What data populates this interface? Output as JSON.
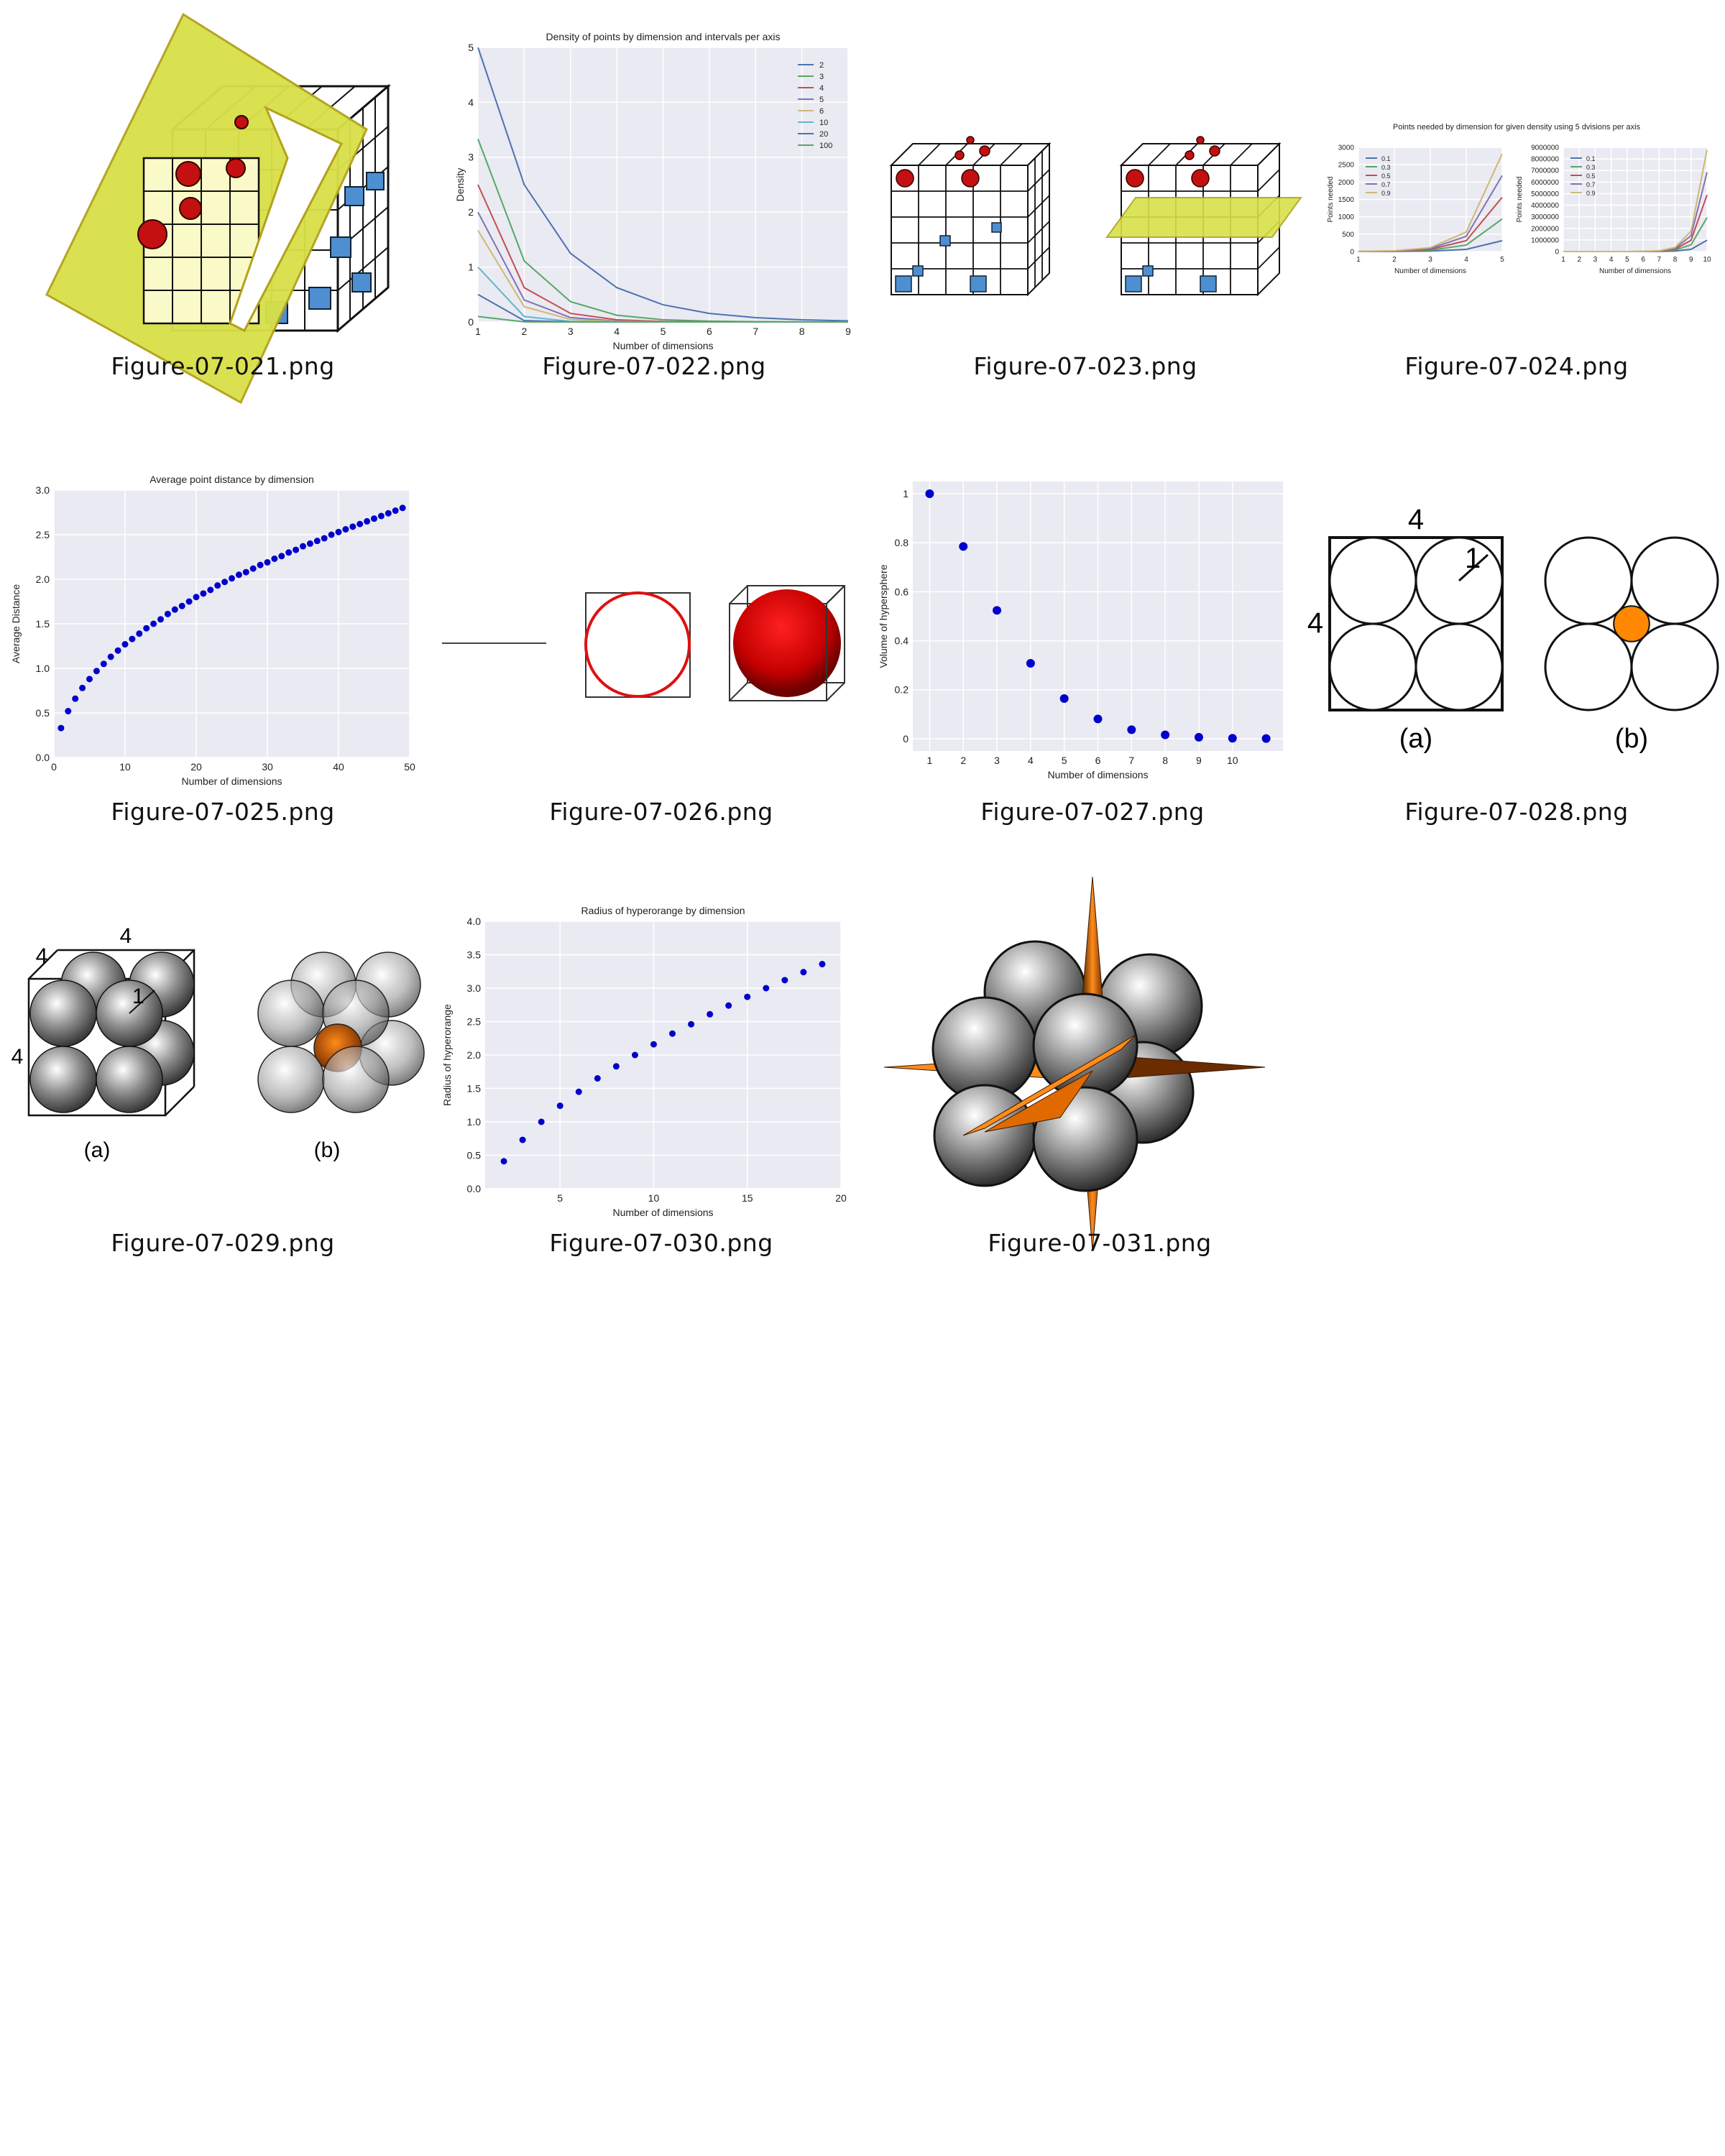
{
  "gallery": {
    "thumbnails": [
      {
        "filename": "Figure-07-021.png"
      },
      {
        "filename": "Figure-07-022.png"
      },
      {
        "filename": "Figure-07-023.png"
      },
      {
        "filename": "Figure-07-024.png"
      },
      {
        "filename": "Figure-07-025.png"
      },
      {
        "filename": "Figure-07-026.png"
      },
      {
        "filename": "Figure-07-027.png"
      },
      {
        "filename": "Figure-07-028.png"
      },
      {
        "filename": "Figure-07-029.png"
      },
      {
        "filename": "Figure-07-030.png"
      },
      {
        "filename": "Figure-07-031.png"
      }
    ],
    "fig028": {
      "dim_top": "4",
      "dim_left": "4",
      "radius": "1",
      "label_a": "(a)",
      "label_b": "(b)"
    },
    "fig029": {
      "dim_top": "4",
      "dim_left": "4",
      "dim_depth": "4",
      "radius": "1",
      "label_a": "(a)",
      "label_b": "(b)"
    }
  },
  "colors": {
    "plot_bg": "#eaeaf2",
    "sphere_red": "#cc1111",
    "cube_blue": "#4d8fd0",
    "plane_yellow": "#d8e04a",
    "orange": "#ff8800",
    "point_blue": "#0000cc",
    "sphere_gray": "#888888"
  },
  "chart_data": [
    {
      "type": "line",
      "title": "Density of points by dimension and intervals per axis",
      "xlabel": "Number of dimensions",
      "ylabel": "Density",
      "xlim": [
        1,
        9
      ],
      "ylim": [
        0,
        5
      ],
      "x": [
        1,
        2,
        3,
        4,
        5,
        6,
        7,
        8,
        9
      ],
      "legend_placement": "top-right",
      "series": [
        {
          "name": "2",
          "color": "#4c72b0",
          "values": [
            5,
            2.5,
            1.25,
            0.625,
            0.313,
            0.156,
            0.078,
            0.039,
            0.02
          ]
        },
        {
          "name": "3",
          "color": "#55a868",
          "values": [
            3.333,
            1.111,
            0.37,
            0.123,
            0.041,
            0.014,
            0.005,
            0.002,
            0.001
          ]
        },
        {
          "name": "4",
          "color": "#c44e52",
          "values": [
            2.5,
            0.625,
            0.156,
            0.039,
            0.01,
            0.002,
            0.001,
            0,
            0
          ]
        },
        {
          "name": "5",
          "color": "#8172b2",
          "values": [
            2,
            0.4,
            0.08,
            0.016,
            0.003,
            0.001,
            0,
            0,
            0
          ]
        },
        {
          "name": "6",
          "color": "#ccb974",
          "values": [
            1.667,
            0.278,
            0.046,
            0.008,
            0.001,
            0,
            0,
            0,
            0
          ]
        },
        {
          "name": "10",
          "color": "#64b5cd",
          "values": [
            1,
            0.1,
            0.01,
            0.001,
            0,
            0,
            0,
            0,
            0
          ]
        },
        {
          "name": "20",
          "color": "#4c72b0",
          "values": [
            0.5,
            0.025,
            0.001,
            0,
            0,
            0,
            0,
            0,
            0
          ]
        },
        {
          "name": "100",
          "color": "#55a868",
          "values": [
            0.1,
            0.001,
            0,
            0,
            0,
            0,
            0,
            0,
            0
          ]
        }
      ],
      "xticks": [
        "1",
        "2",
        "3",
        "4",
        "5",
        "6",
        "7",
        "8",
        "9"
      ],
      "yticks": [
        "0",
        "1",
        "2",
        "3",
        "4",
        "5"
      ]
    },
    {
      "type": "line",
      "title": "Points needed by dimension for given density using 5 dvisions per axis",
      "panels": [
        {
          "xlabel": "Number of dimensions",
          "ylabel": "Points needed",
          "xlim": [
            1,
            5
          ],
          "ylim": [
            0,
            3000
          ],
          "x": [
            1,
            2,
            3,
            4,
            5
          ],
          "xticks": [
            "1",
            "2",
            "3",
            "4",
            "5"
          ],
          "yticks": [
            "0",
            "500",
            "1000",
            "1500",
            "2000",
            "2500",
            "3000"
          ],
          "series": [
            {
              "name": "0.1",
              "color": "#4c72b0",
              "values": [
                0.5,
                2.5,
                12.5,
                62.5,
                312.5
              ]
            },
            {
              "name": "0.3",
              "color": "#55a868",
              "values": [
                1.5,
                7.5,
                37.5,
                187.5,
                937.5
              ]
            },
            {
              "name": "0.5",
              "color": "#c44e52",
              "values": [
                2.5,
                12.5,
                62.5,
                312.5,
                1562.5
              ]
            },
            {
              "name": "0.7",
              "color": "#8172b2",
              "values": [
                3.5,
                17.5,
                87.5,
                437.5,
                2187.5
              ]
            },
            {
              "name": "0.9",
              "color": "#ccb974",
              "values": [
                4.5,
                22.5,
                112.5,
                562.5,
                2812.5
              ]
            }
          ]
        },
        {
          "xlabel": "Number of dimensions",
          "ylabel": "Points needed",
          "xlim": [
            1,
            10
          ],
          "ylim": [
            0,
            9000000
          ],
          "x": [
            1,
            2,
            3,
            4,
            5,
            6,
            7,
            8,
            9,
            10
          ],
          "xticks": [
            "1",
            "2",
            "3",
            "4",
            "5",
            "6",
            "7",
            "8",
            "9",
            "10"
          ],
          "yticks": [
            "0",
            "1000000",
            "2000000",
            "3000000",
            "4000000",
            "5000000",
            "6000000",
            "7000000",
            "8000000",
            "9000000"
          ],
          "series": [
            {
              "name": "0.1",
              "color": "#4c72b0",
              "values": [
                0.5,
                2.5,
                12.5,
                62.5,
                312.5,
                1562.5,
                7812.5,
                39062.5,
                195312.5,
                976562.5
              ]
            },
            {
              "name": "0.3",
              "color": "#55a868",
              "values": [
                1.5,
                7.5,
                37.5,
                187.5,
                937.5,
                4687.5,
                23437.5,
                117187.5,
                585937.5,
                2929687.5
              ]
            },
            {
              "name": "0.5",
              "color": "#c44e52",
              "values": [
                2.5,
                12.5,
                62.5,
                312.5,
                1562.5,
                7812.5,
                39062.5,
                195312.5,
                976562.5,
                4882812.5
              ]
            },
            {
              "name": "0.7",
              "color": "#8172b2",
              "values": [
                3.5,
                17.5,
                87.5,
                437.5,
                2187.5,
                10937.5,
                54687.5,
                273437.5,
                1367187.5,
                6835937.5
              ]
            },
            {
              "name": "0.9",
              "color": "#ccb974",
              "values": [
                4.5,
                22.5,
                112.5,
                562.5,
                2812.5,
                14062.5,
                70312.5,
                351562.5,
                1757812.5,
                8789062.5
              ]
            }
          ]
        }
      ]
    },
    {
      "type": "scatter",
      "title": "Average point distance by dimension",
      "xlabel": "Number of dimensions",
      "ylabel": "Average Distance",
      "xlim": [
        0,
        50
      ],
      "ylim": [
        0,
        3
      ],
      "xticks": [
        "0",
        "10",
        "20",
        "30",
        "40",
        "50"
      ],
      "yticks": [
        "0.0",
        "0.5",
        "1.0",
        "1.5",
        "2.0",
        "2.5",
        "3.0"
      ],
      "x": [
        1,
        2,
        3,
        4,
        5,
        6,
        7,
        8,
        9,
        10,
        11,
        12,
        13,
        14,
        15,
        16,
        17,
        18,
        19,
        20,
        21,
        22,
        23,
        24,
        25,
        26,
        27,
        28,
        29,
        30,
        31,
        32,
        33,
        34,
        35,
        36,
        37,
        38,
        39,
        40,
        41,
        42,
        43,
        44,
        45,
        46,
        47,
        48,
        49
      ],
      "y": [
        0.33,
        0.52,
        0.66,
        0.78,
        0.88,
        0.97,
        1.05,
        1.13,
        1.2,
        1.27,
        1.33,
        1.39,
        1.45,
        1.5,
        1.55,
        1.61,
        1.66,
        1.7,
        1.75,
        1.8,
        1.84,
        1.88,
        1.93,
        1.97,
        2.01,
        2.05,
        2.08,
        2.12,
        2.16,
        2.19,
        2.23,
        2.26,
        2.3,
        2.33,
        2.37,
        2.4,
        2.43,
        2.46,
        2.5,
        2.53,
        2.56,
        2.59,
        2.62,
        2.65,
        2.68,
        2.71,
        2.74,
        2.77,
        2.8
      ]
    },
    {
      "type": "scatter",
      "xlabel": "Number of dimensions",
      "ylabel": "Volume of hypersphere",
      "xlim": [
        0.5,
        11.5
      ],
      "ylim": [
        -0.05,
        1.05
      ],
      "xticks": [
        "1",
        "2",
        "3",
        "4",
        "5",
        "6",
        "7",
        "8",
        "9",
        "10"
      ],
      "yticks": [
        "0",
        "0.2",
        "0.4",
        "0.6",
        "0.8",
        "1"
      ],
      "x": [
        1,
        2,
        3,
        4,
        5,
        6,
        7,
        8,
        9,
        10,
        11
      ],
      "y": [
        1,
        0.785,
        0.524,
        0.308,
        0.164,
        0.081,
        0.037,
        0.016,
        0.006,
        0.002,
        0.001
      ]
    },
    {
      "type": "scatter",
      "title": "Radius of hyperorange by dimension",
      "xlabel": "Number of dimensions",
      "ylabel": "Radius of hyperorange",
      "xlim": [
        1,
        20
      ],
      "ylim": [
        0,
        4
      ],
      "xticks": [
        "5",
        "10",
        "15",
        "20"
      ],
      "yticks": [
        "0.0",
        "0.5",
        "1.0",
        "1.5",
        "2.0",
        "2.5",
        "3.0",
        "3.5",
        "4.0"
      ],
      "x": [
        2,
        3,
        4,
        5,
        6,
        7,
        8,
        9,
        10,
        11,
        12,
        13,
        14,
        15,
        16,
        17,
        18,
        19
      ],
      "y": [
        0.41,
        0.73,
        1.0,
        1.24,
        1.45,
        1.65,
        1.83,
        2.0,
        2.16,
        2.32,
        2.46,
        2.61,
        2.74,
        2.87,
        3.0,
        3.12,
        3.24,
        3.36
      ]
    }
  ]
}
